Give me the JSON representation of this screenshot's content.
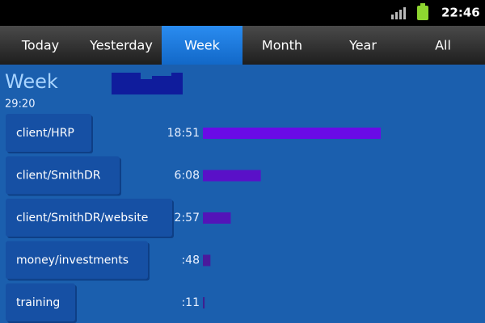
{
  "status_bar": {
    "time": "22:46"
  },
  "tabs": [
    "Today",
    "Yesterday",
    "Week",
    "Month",
    "Year",
    "All"
  ],
  "header": {
    "title": "Week",
    "total": "29:20"
  },
  "rows": [
    {
      "name": "client/HRP",
      "duration": {
        "value": 1131,
        "label": "18:51"
      },
      "color": "#6a0be6"
    },
    {
      "name": "client/SmithDR",
      "duration": {
        "value": 368,
        "label": "6:08"
      },
      "color": "#5a10c8"
    },
    {
      "name": "client/SmithDR/website",
      "duration": {
        "value": 177,
        "label": "2:57"
      },
      "color": "#5314b8"
    },
    {
      "name": "money/investments",
      "duration": {
        "value": 48,
        "label": ":48"
      },
      "color": "#4a1a9c"
    },
    {
      "name": "training",
      "duration": {
        "value": 11,
        "label": ":11"
      },
      "color": "#3f2090"
    }
  ]
}
